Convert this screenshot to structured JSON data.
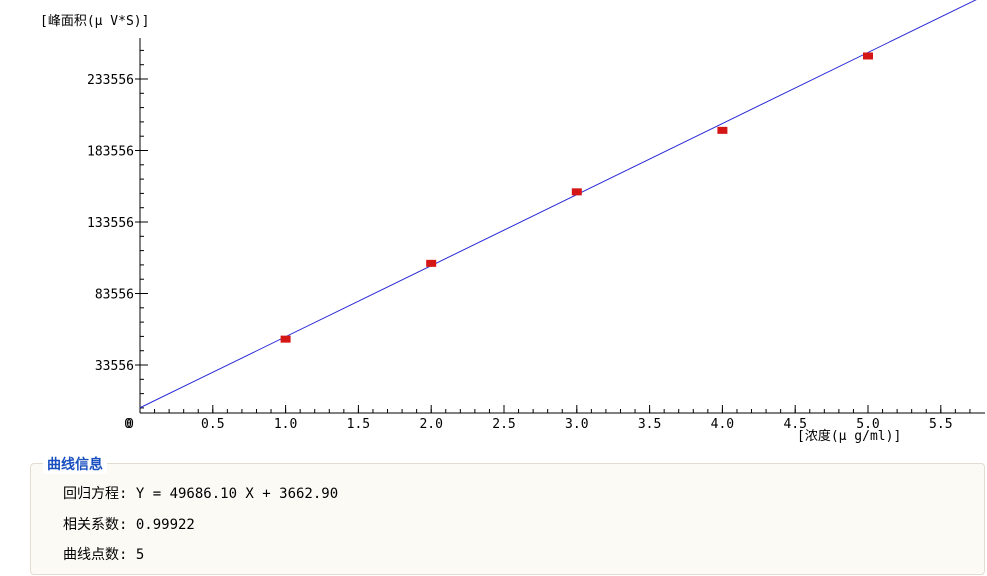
{
  "chart_data": {
    "type": "scatter",
    "ylabel": "[峰面积(μ V*S)]",
    "xlabel": "[浓度(μ g/ml)]",
    "xlim": [
      0,
      5.75
    ],
    "ylim": [
      0,
      266000
    ],
    "xticks": [
      0,
      0.5,
      1.0,
      1.5,
      2.0,
      2.5,
      3.0,
      3.5,
      4.0,
      4.5,
      5.0,
      5.5
    ],
    "xtick_labels": [
      "0",
      "0.5",
      "1.0",
      "1.5",
      "2.0",
      "2.5",
      "3.0",
      "3.5",
      "4.0",
      "4.5",
      "5.0",
      "5.5"
    ],
    "yticks": [
      0,
      33556,
      83556,
      133556,
      183556,
      233556
    ],
    "ytick_labels": [
      "0",
      "33556",
      "83556",
      "133556",
      "183556",
      "233556"
    ],
    "points": [
      {
        "x": 1.0,
        "y": 52000
      },
      {
        "x": 2.0,
        "y": 105000
      },
      {
        "x": 3.0,
        "y": 155000
      },
      {
        "x": 4.0,
        "y": 198000
      },
      {
        "x": 5.0,
        "y": 250000
      }
    ],
    "fit_line": {
      "slope": 49686.1,
      "intercept": 3662.9,
      "x_range": [
        0,
        5.75
      ]
    },
    "colors": {
      "points": "#d41616",
      "line": "#2a2ad8",
      "axis": "#000000"
    },
    "grid": false
  },
  "info": {
    "title": "曲线信息",
    "equation": "回归方程: Y = 49686.10 X + 3662.90",
    "correlation": "相关系数: 0.99922",
    "point_count": "曲线点数: 5"
  }
}
